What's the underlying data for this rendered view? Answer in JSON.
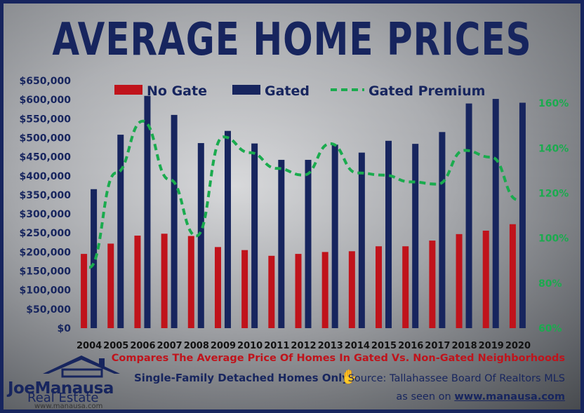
{
  "title": "AVERAGE HOME PRICES",
  "legend": {
    "no_gate": "No Gate",
    "gated": "Gated",
    "premium": "Gated Premium"
  },
  "colors": {
    "no_gate": "#c0131b",
    "gated": "#17255e",
    "premium": "#1aab4e",
    "title": "#17255e"
  },
  "footer": {
    "compare": "Compares The Average Price Of Homes In Gated Vs. Non-Gated Neighborhoods",
    "single": "Single-Family Detached Homes Only",
    "source": "Source: Tallahassee Board Of Realtors MLS",
    "seen_prefix": "as seen on",
    "seen_site": "www.manausa.com"
  },
  "logo": {
    "joe": "Joe",
    "manausa": "Manausa",
    "real_estate": "Real Estate",
    "url": "www.manausa.com",
    "icon": "house-roof-icon"
  },
  "chart_data": {
    "type": "bar",
    "categories": [
      "2004",
      "2005",
      "2006",
      "2007",
      "2008",
      "2009",
      "2010",
      "2011",
      "2012",
      "2013",
      "2014",
      "2015",
      "2016",
      "2017",
      "2018",
      "2019",
      "2020"
    ],
    "series": [
      {
        "name": "No Gate",
        "type": "bar",
        "axis": "left",
        "values": [
          195000,
          222000,
          243000,
          248000,
          242000,
          213000,
          205000,
          190000,
          195000,
          200000,
          202000,
          215000,
          215000,
          230000,
          247000,
          256000,
          273000
        ]
      },
      {
        "name": "Gated",
        "type": "bar",
        "axis": "left",
        "values": [
          365000,
          508000,
          610000,
          560000,
          486000,
          518000,
          485000,
          442000,
          442000,
          482000,
          461000,
          492000,
          484000,
          515000,
          590000,
          602000,
          592000
        ]
      },
      {
        "name": "Gated Premium",
        "type": "line",
        "style": "dashed",
        "axis": "right",
        "values": [
          87,
          129,
          152,
          126,
          101,
          145,
          138,
          131,
          128,
          142,
          129,
          128,
          125,
          124,
          139,
          136,
          117
        ]
      }
    ],
    "left_axis": {
      "min": 0,
      "max": 650000,
      "step": 50000,
      "tick_labels": [
        "$0",
        "$50,000",
        "$100,000",
        "$150,000",
        "$200,000",
        "$250,000",
        "$300,000",
        "$350,000",
        "$400,000",
        "$450,000",
        "$500,000",
        "$550,000",
        "$600,000",
        "$650,000"
      ]
    },
    "right_axis": {
      "min": 60,
      "max": 170,
      "tick_values": [
        60,
        80,
        100,
        120,
        140,
        160
      ],
      "tick_labels": [
        "60%",
        "80%",
        "100%",
        "120%",
        "140%",
        "160%"
      ]
    },
    "legend_position": "top",
    "grid": false
  }
}
